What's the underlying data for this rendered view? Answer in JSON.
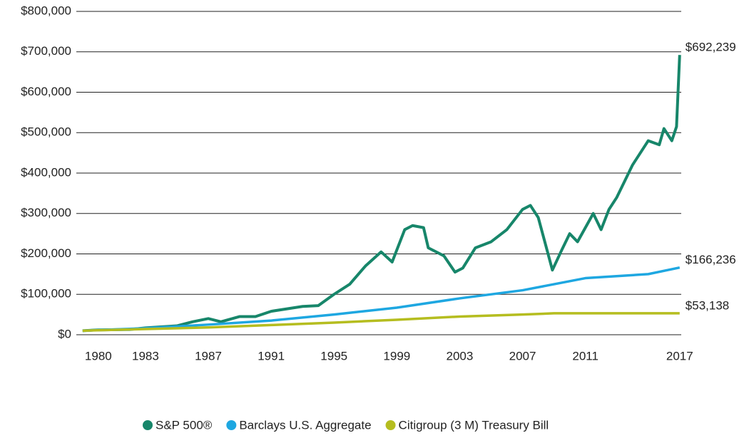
{
  "chart_data": {
    "type": "line",
    "xlim": [
      1978.6,
      2017.1
    ],
    "xticks": [
      1980,
      1983,
      1987,
      1991,
      1995,
      1999,
      2003,
      2007,
      2011,
      2017
    ],
    "ylim": [
      0,
      800000
    ],
    "yticks": [
      {
        "value": 0,
        "label": "$0"
      },
      {
        "value": 100000,
        "label": "$100,000"
      },
      {
        "value": 200000,
        "label": "$200,000"
      },
      {
        "value": 300000,
        "label": "$300,000"
      },
      {
        "value": 400000,
        "label": "$400,000"
      },
      {
        "value": 500000,
        "label": "$500,000"
      },
      {
        "value": 600000,
        "label": "$600,000"
      },
      {
        "value": 700000,
        "label": "$700,000"
      },
      {
        "value": 800000,
        "label": "$800,000"
      }
    ],
    "grid": true,
    "legend": "bottom",
    "series": [
      {
        "name": "S&P 500®",
        "color": "#17866a",
        "end_label": "$692,239",
        "x": [
          1979,
          1980,
          1982,
          1983,
          1985,
          1986,
          1987,
          1987.8,
          1989,
          1990,
          1991,
          1993,
          1994,
          1995,
          1996,
          1997,
          1998,
          1998.7,
          1999.5,
          2000,
          2000.7,
          2001,
          2002,
          2002.7,
          2003.2,
          2004,
          2005,
          2006,
          2007,
          2007.5,
          2008,
          2008.9,
          2009.5,
          2010,
          2010.5,
          2011.5,
          2012,
          2012.5,
          2013,
          2014,
          2015,
          2015.7,
          2016,
          2016.5,
          2016.8,
          2017
        ],
        "values": [
          10000,
          12000,
          13000,
          17000,
          22000,
          32000,
          40000,
          32000,
          45000,
          45000,
          58000,
          70000,
          72000,
          100000,
          125000,
          170000,
          205000,
          180000,
          260000,
          270000,
          265000,
          215000,
          195000,
          155000,
          165000,
          215000,
          230000,
          260000,
          310000,
          320000,
          290000,
          160000,
          210000,
          250000,
          230000,
          300000,
          260000,
          310000,
          340000,
          420000,
          480000,
          470000,
          510000,
          480000,
          515000,
          692239
        ]
      },
      {
        "name": "Barclays U.S. Aggregate",
        "color": "#1ea7e1",
        "end_label": "$166,236",
        "x": [
          1979,
          1983,
          1987,
          1991,
          1995,
          1999,
          2003,
          2007,
          2011,
          2015,
          2017
        ],
        "values": [
          10000,
          16000,
          25000,
          35000,
          50000,
          67000,
          90000,
          110000,
          140000,
          150000,
          166236
        ]
      },
      {
        "name": "Citigroup (3 M) Treasury Bill",
        "color": "#b5bd1f",
        "end_label": "$53,138",
        "x": [
          1979,
          1983,
          1987,
          1991,
          1995,
          1999,
          2003,
          2007,
          2009,
          2017
        ],
        "values": [
          10000,
          14000,
          18000,
          24000,
          30000,
          37000,
          45000,
          50000,
          53000,
          53138
        ]
      }
    ]
  }
}
